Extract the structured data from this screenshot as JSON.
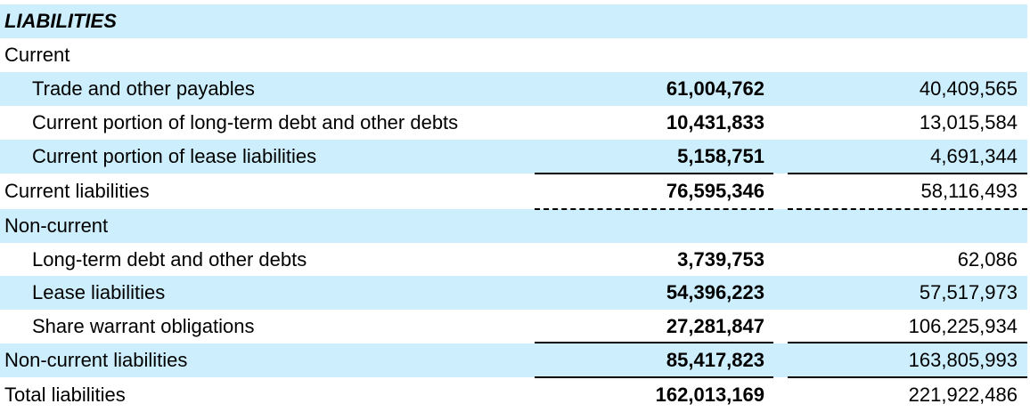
{
  "heading": "LIABILITIES",
  "rows": [
    {
      "label": "Current",
      "current": "",
      "prior": ""
    },
    {
      "label": "Trade and other payables",
      "current": "61,004,762",
      "prior": "40,409,565"
    },
    {
      "label": "Current portion of long-term debt and other debts",
      "current": "10,431,833",
      "prior": "13,015,584"
    },
    {
      "label": "Current portion of lease liabilities",
      "current": "5,158,751",
      "prior": "4,691,344"
    },
    {
      "label": "Current liabilities",
      "current": "76,595,346",
      "prior": "58,116,493"
    },
    {
      "label": "Non-current",
      "current": "",
      "prior": ""
    },
    {
      "label": "Long-term debt and other debts",
      "current": "3,739,753",
      "prior": "62,086"
    },
    {
      "label": "Lease liabilities",
      "current": "54,396,223",
      "prior": "57,517,973"
    },
    {
      "label": "Share warrant obligations",
      "current": "27,281,847",
      "prior": "106,225,934"
    },
    {
      "label": "Non-current liabilities",
      "current": "85,417,823",
      "prior": "163,805,993"
    },
    {
      "label": "Total liabilities",
      "current": "162,013,169",
      "prior": "221,922,486"
    }
  ],
  "colors": {
    "shade": "#cdeefc",
    "text": "#000000"
  }
}
